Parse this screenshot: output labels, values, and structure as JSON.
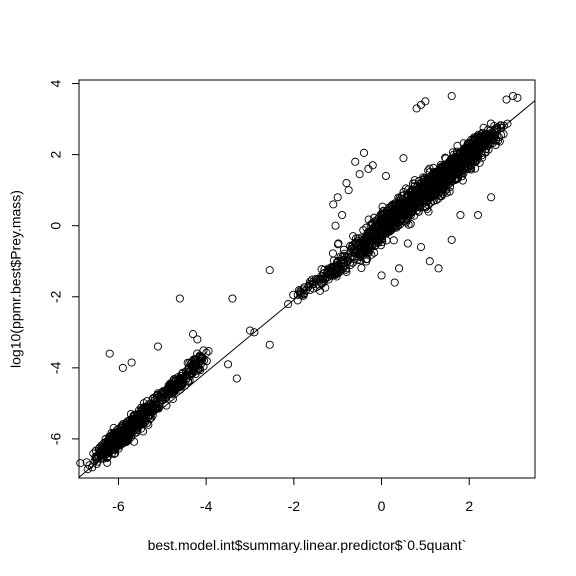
{
  "chart_data": {
    "type": "scatter",
    "title": "",
    "xlabel": "best.model.int$summary.linear.predictor$`0.5quant`",
    "ylabel": "log10(ppmr.best$Prey.mass)",
    "xlim": [
      -6.9,
      3.5
    ],
    "ylim": [
      -7.1,
      4.1
    ],
    "x_ticks": [
      -6,
      -4,
      -2,
      0,
      2
    ],
    "y_ticks": [
      -6,
      -4,
      -2,
      0,
      2,
      4
    ],
    "grid": false,
    "legend": "none",
    "reference_line": {
      "x": [
        -6.9,
        3.5
      ],
      "y": [
        -7.08,
        3.52
      ]
    },
    "clusters": [
      {
        "x_mean": -6.0,
        "y_mean": -6.0,
        "x_sd": 0.25,
        "y_sd": 0.28,
        "count": 420
      },
      {
        "x_mean": -5.5,
        "y_mean": -5.4,
        "x_sd": 0.25,
        "y_sd": 0.3,
        "count": 150
      },
      {
        "x_mean": -4.7,
        "y_mean": -4.5,
        "x_sd": 0.3,
        "y_sd": 0.25,
        "count": 160
      },
      {
        "x_mean": -4.3,
        "y_mean": -3.9,
        "x_sd": 0.15,
        "y_sd": 0.2,
        "count": 40
      },
      {
        "x_mean": 1.3,
        "y_mean": 1.25,
        "x_sd": 0.5,
        "y_sd": 0.45,
        "count": 850
      },
      {
        "x_mean": 2.2,
        "y_mean": 2.3,
        "x_sd": 0.3,
        "y_sd": 0.35,
        "count": 150
      },
      {
        "x_mean": 0.2,
        "y_mean": 0.2,
        "x_sd": 0.35,
        "y_sd": 0.45,
        "count": 300
      },
      {
        "x_mean": -0.4,
        "y_mean": -0.6,
        "x_sd": 0.3,
        "y_sd": 0.4,
        "count": 150
      },
      {
        "x_mean": -1.2,
        "y_mean": -1.35,
        "x_sd": 0.25,
        "y_sd": 0.3,
        "count": 80
      },
      {
        "x_mean": -1.8,
        "y_mean": -1.9,
        "x_sd": 0.2,
        "y_sd": 0.2,
        "count": 20
      }
    ],
    "points": [
      [
        -4.6,
        -2.05
      ],
      [
        -3.4,
        -2.05
      ],
      [
        -2.55,
        -1.25
      ],
      [
        -2.55,
        -3.35
      ],
      [
        -2.9,
        -3.0
      ],
      [
        -3.0,
        -2.95
      ],
      [
        -3.3,
        -4.3
      ],
      [
        -3.5,
        -3.9
      ],
      [
        -4.2,
        -3.2
      ],
      [
        -4.3,
        -3.05
      ],
      [
        -5.1,
        -3.4
      ],
      [
        -5.7,
        -3.85
      ],
      [
        -5.9,
        -4.0
      ],
      [
        -6.2,
        -3.6
      ],
      [
        -6.6,
        -6.8
      ],
      [
        -6.7,
        -6.85
      ],
      [
        2.85,
        3.55
      ],
      [
        3.1,
        3.6
      ],
      [
        3.0,
        3.65
      ],
      [
        1.6,
        3.65
      ],
      [
        0.9,
        3.4
      ],
      [
        1.0,
        3.5
      ],
      [
        0.8,
        3.3
      ],
      [
        -0.4,
        2.05
      ],
      [
        -0.6,
        1.8
      ],
      [
        0.5,
        1.9
      ],
      [
        -0.3,
        1.6
      ],
      [
        0.1,
        1.4
      ],
      [
        0.6,
        -0.5
      ],
      [
        0.9,
        -0.6
      ],
      [
        1.1,
        -1.0
      ],
      [
        1.3,
        -1.2
      ],
      [
        1.6,
        -0.4
      ],
      [
        1.8,
        0.3
      ],
      [
        2.2,
        0.3
      ],
      [
        2.5,
        0.8
      ],
      [
        0.0,
        -1.4
      ],
      [
        0.3,
        -1.6
      ],
      [
        -0.8,
        -1.3
      ],
      [
        0.4,
        -1.2
      ],
      [
        -1.0,
        0.8
      ],
      [
        -1.1,
        0.6
      ],
      [
        -0.9,
        0.3
      ],
      [
        -1.05,
        0.0
      ],
      [
        -0.8,
        1.2
      ],
      [
        -0.75,
        1.0
      ],
      [
        -0.2,
        1.7
      ],
      [
        -0.5,
        1.45
      ]
    ]
  }
}
